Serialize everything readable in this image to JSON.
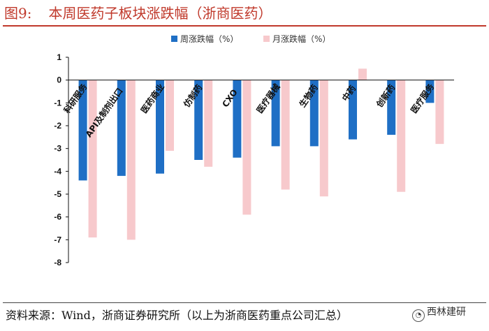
{
  "header": {
    "figure_number": "图9:",
    "title": "本周医药子板块涨跌幅（浙商医药）"
  },
  "footer": {
    "source": "资料来源：Wind，浙商证券研究所（以上为浙商医药重点公司汇总）",
    "watermark": "西林建研"
  },
  "colors": {
    "accent": "#c0392b",
    "weekly": "#1f6fc5",
    "monthly": "#f7c9cc"
  },
  "chart_data": {
    "type": "bar",
    "title": "",
    "xlabel": "",
    "ylabel": "",
    "ylim": [
      -8,
      1
    ],
    "yticks": [
      1,
      0,
      -1,
      -2,
      -3,
      -4,
      -5,
      -6,
      -7,
      -8
    ],
    "categories": [
      "科研服务",
      "API及制剂出口",
      "医药商业",
      "仿制药",
      "CXO",
      "医疗器械",
      "生物药",
      "中药",
      "创新药",
      "医疗服务"
    ],
    "series": [
      {
        "name": "周涨跌幅（%）",
        "color": "#1f6fc5",
        "values": [
          -4.4,
          -4.2,
          -4.1,
          -3.5,
          -3.4,
          -2.9,
          -2.9,
          -2.6,
          -2.4,
          -1.0
        ]
      },
      {
        "name": "月涨跌幅（%）",
        "color": "#f7c9cc",
        "values": [
          -6.9,
          -7.0,
          -3.1,
          -3.8,
          -5.9,
          -4.8,
          -5.1,
          0.5,
          -4.9,
          -2.8
        ]
      }
    ],
    "legend_position": "top-center",
    "grid": false
  }
}
